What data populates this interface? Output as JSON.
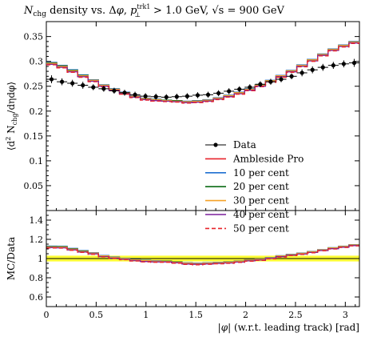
{
  "chart_data": [
    {
      "type": "line",
      "panel": "main",
      "title": "N_chg density vs. Δφ, p⊥^trk1 > 1.0 GeV, √s = 900 GeV",
      "title_parts": {
        "n": "N",
        "n_sub": "chg",
        "mid": " density vs. Δ",
        "phi": "φ",
        "comma1": ", ",
        "p": "p",
        "p_sup": "trk1",
        "p_sub": "⊥",
        "cut": " > 1.0 GeV, ",
        "sqrt": "√s",
        "energy": " = 900 GeV"
      },
      "ylabel": "⟨d² N_chg/dηdφ⟩",
      "ylabel_parts": {
        "open": "⟨d",
        "two": "2",
        "n": " N",
        "sub": "chg",
        "rest": "/dηdφ⟩"
      },
      "xlim": [
        0,
        3.1416
      ],
      "ylim": [
        0,
        0.38
      ],
      "yticks": [
        "0.05",
        "0.1",
        "0.15",
        "0.2",
        "0.25",
        "0.3",
        "0.35"
      ],
      "legend_position": "center-right",
      "x": [
        0.0524,
        0.1571,
        0.2618,
        0.3665,
        0.4712,
        0.576,
        0.6807,
        0.7854,
        0.8901,
        0.9948,
        1.0996,
        1.2043,
        1.309,
        1.4137,
        1.5184,
        1.6232,
        1.7279,
        1.8326,
        1.9373,
        2.042,
        2.1468,
        2.2515,
        2.3562,
        2.4609,
        2.5656,
        2.6704,
        2.7751,
        2.8798,
        2.9845,
        3.0892
      ],
      "series": [
        {
          "name": "Data",
          "style": "points",
          "color": "#000000",
          "values": [
            0.264,
            0.259,
            0.256,
            0.252,
            0.248,
            0.245,
            0.241,
            0.237,
            0.233,
            0.23,
            0.229,
            0.228,
            0.229,
            0.23,
            0.232,
            0.233,
            0.236,
            0.24,
            0.244,
            0.248,
            0.254,
            0.259,
            0.264,
            0.27,
            0.277,
            0.283,
            0.288,
            0.292,
            0.295,
            0.297
          ],
          "errors": [
            0.008,
            0.007,
            0.007,
            0.007,
            0.006,
            0.006,
            0.006,
            0.006,
            0.006,
            0.006,
            0.006,
            0.006,
            0.006,
            0.006,
            0.006,
            0.006,
            0.006,
            0.006,
            0.006,
            0.006,
            0.006,
            0.006,
            0.006,
            0.006,
            0.007,
            0.007,
            0.007,
            0.007,
            0.007,
            0.008
          ]
        },
        {
          "name": "Ambleside Pro",
          "style": "solid",
          "color": "#e8242b",
          "values": [
            0.295,
            0.289,
            0.28,
            0.27,
            0.261,
            0.251,
            0.243,
            0.236,
            0.229,
            0.224,
            0.222,
            0.221,
            0.219,
            0.218,
            0.219,
            0.221,
            0.225,
            0.23,
            0.236,
            0.243,
            0.251,
            0.26,
            0.27,
            0.28,
            0.291,
            0.302,
            0.313,
            0.323,
            0.331,
            0.338
          ]
        },
        {
          "name": "10 per cent",
          "style": "solid",
          "color": "#1f6fd1",
          "values": [
            0.298,
            0.292,
            0.283,
            0.273,
            0.263,
            0.253,
            0.245,
            0.238,
            0.231,
            0.226,
            0.224,
            0.222,
            0.221,
            0.22,
            0.221,
            0.223,
            0.227,
            0.232,
            0.238,
            0.245,
            0.253,
            0.262,
            0.272,
            0.282,
            0.293,
            0.304,
            0.315,
            0.325,
            0.333,
            0.34
          ]
        },
        {
          "name": "20 per cent",
          "style": "solid",
          "color": "#0a6b14",
          "values": [
            0.297,
            0.291,
            0.282,
            0.272,
            0.262,
            0.252,
            0.244,
            0.237,
            0.23,
            0.225,
            0.223,
            0.222,
            0.221,
            0.219,
            0.22,
            0.222,
            0.226,
            0.231,
            0.237,
            0.244,
            0.252,
            0.261,
            0.271,
            0.281,
            0.292,
            0.303,
            0.314,
            0.324,
            0.332,
            0.339
          ]
        },
        {
          "name": "30 per cent",
          "style": "solid",
          "color": "#f5a127",
          "values": [
            0.296,
            0.29,
            0.281,
            0.271,
            0.262,
            0.252,
            0.244,
            0.237,
            0.23,
            0.225,
            0.223,
            0.221,
            0.22,
            0.219,
            0.22,
            0.222,
            0.226,
            0.231,
            0.237,
            0.244,
            0.252,
            0.261,
            0.271,
            0.281,
            0.292,
            0.303,
            0.314,
            0.324,
            0.332,
            0.339
          ]
        },
        {
          "name": "40 per cent",
          "style": "solid",
          "color": "#7a1f9c",
          "values": [
            0.294,
            0.288,
            0.279,
            0.269,
            0.26,
            0.25,
            0.242,
            0.235,
            0.228,
            0.223,
            0.221,
            0.22,
            0.219,
            0.217,
            0.218,
            0.22,
            0.224,
            0.229,
            0.235,
            0.242,
            0.25,
            0.259,
            0.269,
            0.279,
            0.29,
            0.301,
            0.312,
            0.322,
            0.33,
            0.337
          ]
        },
        {
          "name": "50 per cent",
          "style": "dashed",
          "color": "#e8242b",
          "values": [
            0.293,
            0.287,
            0.278,
            0.268,
            0.259,
            0.249,
            0.241,
            0.234,
            0.227,
            0.222,
            0.22,
            0.219,
            0.218,
            0.216,
            0.217,
            0.219,
            0.223,
            0.228,
            0.234,
            0.241,
            0.249,
            0.258,
            0.268,
            0.278,
            0.289,
            0.3,
            0.311,
            0.321,
            0.329,
            0.336
          ]
        }
      ]
    },
    {
      "type": "line",
      "panel": "ratio",
      "ylabel": "MC/Data",
      "xlabel": "|φ| (w.r.t. leading track) [rad]",
      "xlabel_parts": {
        "phi": "|φ|",
        "rest": " (w.r.t. leading track) [rad]"
      },
      "xlim": [
        0,
        3.1416
      ],
      "ylim": [
        0.5,
        1.5
      ],
      "xticks": [
        "0",
        "0.5",
        "1",
        "1.5",
        "2",
        "2.5",
        "3"
      ],
      "yticks": [
        "0.6",
        "0.8",
        "1",
        "1.2",
        "1.4"
      ],
      "band": {
        "low": 0.97,
        "high": 1.03,
        "color": "#ffff33",
        "line": 1.0
      },
      "note": "ratio values are each MC series divided by Data"
    }
  ],
  "colors": {
    "data": "#000000",
    "band": "#ffff33"
  }
}
